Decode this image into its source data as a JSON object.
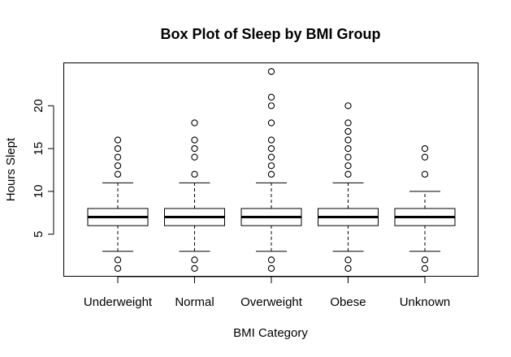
{
  "chart_data": {
    "type": "box",
    "title": "Box Plot of Sleep by BMI Group",
    "xlabel": "BMI Category",
    "ylabel": "Hours Slept",
    "categories": [
      "Underweight",
      "Normal",
      "Overweight",
      "Obese",
      "Unknown"
    ],
    "yticks": [
      5,
      10,
      15,
      20
    ],
    "ylim": [
      0.04,
      24.96
    ],
    "grid": false,
    "legend": "none",
    "boxes": [
      {
        "whisker_low": 3,
        "q1": 6,
        "median": 7,
        "q3": 8,
        "whisker_high": 11,
        "outliers": [
          1,
          2,
          12,
          13,
          14,
          15,
          16
        ]
      },
      {
        "whisker_low": 3,
        "q1": 6,
        "median": 7,
        "q3": 8,
        "whisker_high": 11,
        "outliers": [
          1,
          2,
          12,
          14,
          15,
          16,
          18
        ]
      },
      {
        "whisker_low": 3,
        "q1": 6,
        "median": 7,
        "q3": 8,
        "whisker_high": 11,
        "outliers": [
          1,
          2,
          12,
          13,
          14,
          15,
          16,
          18,
          20,
          21,
          24
        ]
      },
      {
        "whisker_low": 3,
        "q1": 6,
        "median": 7,
        "q3": 8,
        "whisker_high": 11,
        "outliers": [
          1,
          2,
          12,
          13,
          14,
          15,
          16,
          17,
          18,
          20
        ]
      },
      {
        "whisker_low": 3,
        "q1": 6,
        "median": 7,
        "q3": 8,
        "whisker_high": 10,
        "outliers": [
          1,
          2,
          12,
          14,
          15
        ]
      }
    ]
  },
  "colors": {
    "stroke": "#000000",
    "box_fill": "#ffffff",
    "background": "#ffffff"
  }
}
